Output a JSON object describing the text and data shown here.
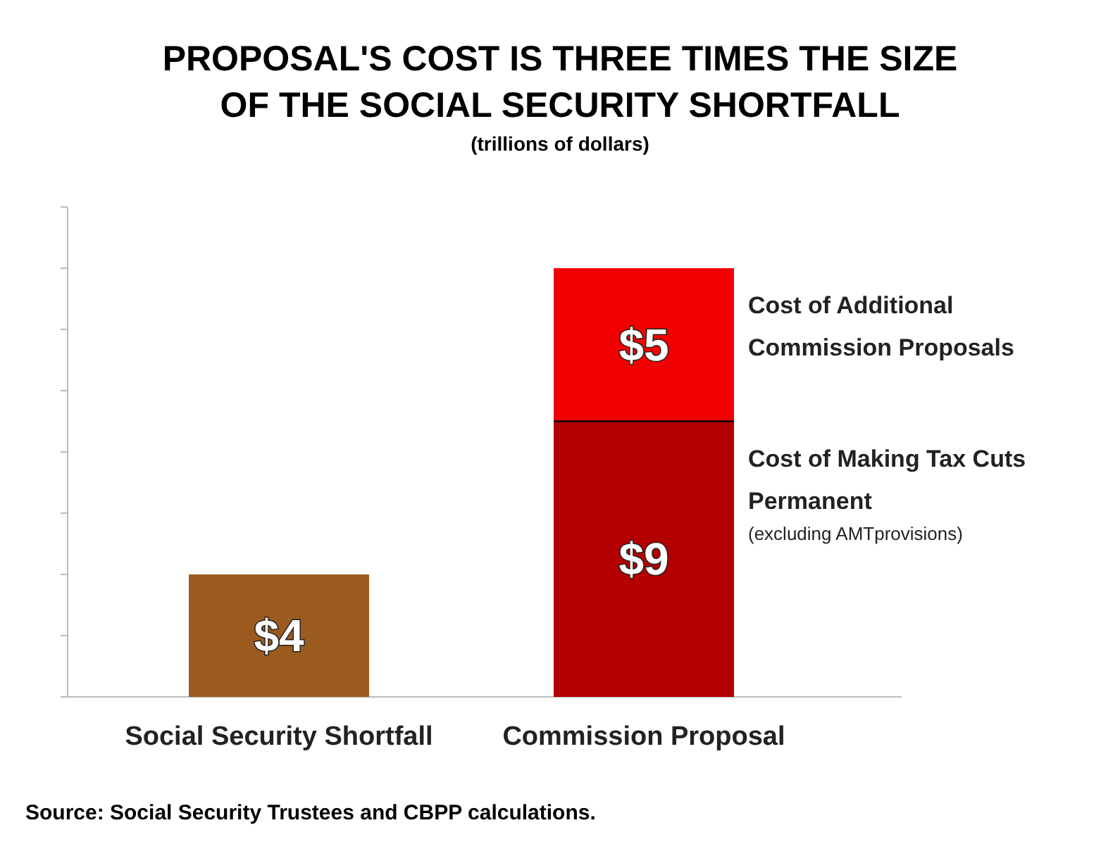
{
  "chart_data": {
    "type": "bar",
    "stacked": true,
    "title": "PROPOSAL'S COST IS THREE TIMES THE SIZE OF THE SOCIAL SECURITY SHORTFALL",
    "subtitle": "(trillions of dollars)",
    "categories": [
      "Social Security Shortfall",
      "Commission Proposal"
    ],
    "series": [
      {
        "name": "Cost of Making Tax Cuts Permanent",
        "colors": [
          "#9b5b1f",
          "#b30000"
        ],
        "values": [
          4,
          9
        ],
        "value_labels": [
          "$4",
          "$9"
        ]
      },
      {
        "name": "Cost of Additional Commission Proposals",
        "color": "#f00000",
        "values": [
          null,
          5
        ],
        "value_labels": [
          null,
          "$5"
        ]
      }
    ],
    "ylim": [
      0,
      16
    ],
    "yticks": [
      {
        "value": 0,
        "label": null
      },
      {
        "value": 2,
        "label": null
      },
      {
        "value": 4,
        "label": null
      },
      {
        "value": 6,
        "label": null
      },
      {
        "value": 8,
        "label": null
      },
      {
        "value": 10,
        "label": null
      },
      {
        "value": 12,
        "label": null
      },
      {
        "value": 14,
        "label": null
      },
      {
        "value": 16,
        "label": null
      }
    ],
    "tick_labels": "x",
    "annotations": [
      "(excluding AMTprovisions)",
      "Source: Social Security Trustees and CBPP calculations."
    ]
  }
}
